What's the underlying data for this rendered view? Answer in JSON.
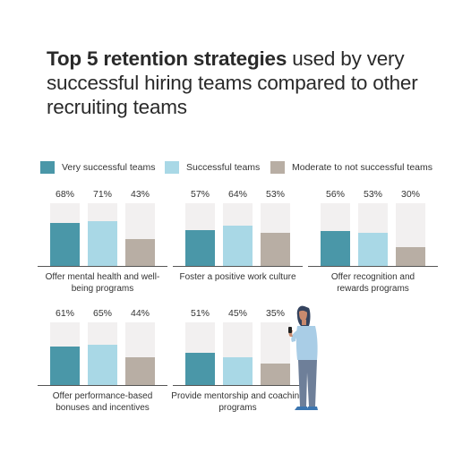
{
  "title": {
    "bold": "Top 5 retention strategies",
    "rest": " used by very successful hiring teams compared to other recruiting teams"
  },
  "colors": {
    "very_successful": "#4a97a8",
    "successful": "#a9d8e6",
    "moderate": "#b8aea4",
    "track": "#f2f0f0"
  },
  "chart_data": {
    "type": "bar",
    "title": "Top 5 retention strategies used by very successful hiring teams compared to other recruiting teams",
    "ylim": [
      0,
      100
    ],
    "unit": "%",
    "series_names": [
      "Very successful teams",
      "Successful teams",
      "Moderate to not successful teams"
    ],
    "categories": [
      {
        "label": "Offer mental health and well-being programs",
        "values": [
          68,
          71,
          43
        ],
        "value_labels": [
          "68%",
          "71%",
          "43%"
        ]
      },
      {
        "label": "Foster a positive work culture",
        "values": [
          57,
          64,
          53
        ],
        "value_labels": [
          "57%",
          "64%",
          "53%"
        ]
      },
      {
        "label": "Offer recognition and rewards programs",
        "values": [
          56,
          53,
          30
        ],
        "value_labels": [
          "56%",
          "53%",
          "30%"
        ]
      },
      {
        "label": "Offer performance-based bonuses and incentives",
        "values": [
          61,
          65,
          44
        ],
        "value_labels": [
          "61%",
          "65%",
          "44%"
        ]
      },
      {
        "label": "Provide mentorship and coaching programs",
        "values": [
          51,
          45,
          35
        ],
        "value_labels": [
          "51%",
          "45%",
          "35%"
        ]
      }
    ]
  }
}
